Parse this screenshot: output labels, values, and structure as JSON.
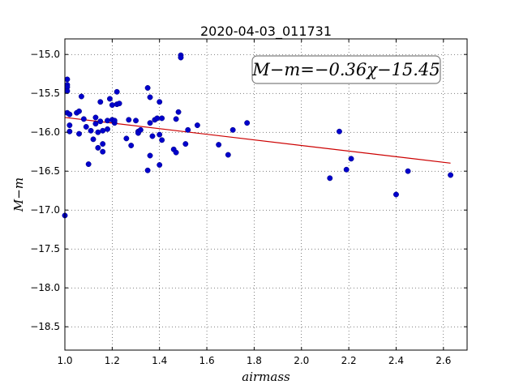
{
  "chart_data": {
    "type": "scatter",
    "title": "2020-04-03_011731",
    "xlabel": "airmass",
    "ylabel": "M−m",
    "xlim": [
      1.0,
      2.7
    ],
    "ylim": [
      -18.8,
      -14.8
    ],
    "y_inverted": true,
    "grid": true,
    "x_ticks": [
      1.0,
      1.2,
      1.4,
      1.6,
      1.8,
      2.0,
      2.2,
      2.4,
      2.6
    ],
    "x_tick_labels": [
      "1.0",
      "1.2",
      "1.4",
      "1.6",
      "1.8",
      "2.0",
      "2.2",
      "2.4",
      "2.6"
    ],
    "y_ticks": [
      -15.0,
      -15.5,
      -16.0,
      -16.5,
      -17.0,
      -17.5,
      -18.0,
      -18.5
    ],
    "y_tick_labels": [
      "−15.0",
      "−15.5",
      "−16.0",
      "−16.5",
      "−17.0",
      "−17.5",
      "−18.0",
      "−18.5"
    ],
    "annotation": "M−m=−0.36χ−15.45",
    "annotation_placement": "top-right",
    "fit": {
      "slope": -0.36,
      "intercept": -15.45,
      "x_range": [
        1.0,
        2.63
      ],
      "color": "#cc0000"
    },
    "point_color": "#0000cc",
    "points": [
      [
        1.0,
        -17.07
      ],
      [
        1.01,
        -15.32
      ],
      [
        1.01,
        -15.39
      ],
      [
        1.01,
        -15.42
      ],
      [
        1.01,
        -15.47
      ],
      [
        1.01,
        -15.75
      ],
      [
        1.02,
        -15.77
      ],
      [
        1.02,
        -15.91
      ],
      [
        1.02,
        -15.99
      ],
      [
        1.05,
        -15.75
      ],
      [
        1.06,
        -15.73
      ],
      [
        1.06,
        -16.02
      ],
      [
        1.07,
        -15.54
      ],
      [
        1.08,
        -15.83
      ],
      [
        1.09,
        -15.93
      ],
      [
        1.1,
        -16.41
      ],
      [
        1.11,
        -15.98
      ],
      [
        1.12,
        -16.09
      ],
      [
        1.13,
        -15.89
      ],
      [
        1.13,
        -15.81
      ],
      [
        1.14,
        -16.0
      ],
      [
        1.14,
        -16.2
      ],
      [
        1.15,
        -15.61
      ],
      [
        1.15,
        -15.86
      ],
      [
        1.16,
        -15.98
      ],
      [
        1.16,
        -16.25
      ],
      [
        1.16,
        -16.15
      ],
      [
        1.18,
        -15.85
      ],
      [
        1.18,
        -15.96
      ],
      [
        1.19,
        -15.57
      ],
      [
        1.2,
        -15.84
      ],
      [
        1.2,
        -15.65
      ],
      [
        1.21,
        -15.88
      ],
      [
        1.21,
        -15.85
      ],
      [
        1.22,
        -15.48
      ],
      [
        1.22,
        -15.64
      ],
      [
        1.23,
        -15.63
      ],
      [
        1.26,
        -16.08
      ],
      [
        1.27,
        -15.84
      ],
      [
        1.28,
        -16.17
      ],
      [
        1.3,
        -15.85
      ],
      [
        1.31,
        -15.99
      ],
      [
        1.31,
        -16.01
      ],
      [
        1.32,
        -15.97
      ],
      [
        1.35,
        -16.49
      ],
      [
        1.35,
        -15.43
      ],
      [
        1.36,
        -15.55
      ],
      [
        1.36,
        -15.88
      ],
      [
        1.36,
        -16.3
      ],
      [
        1.37,
        -16.05
      ],
      [
        1.38,
        -15.84
      ],
      [
        1.39,
        -15.82
      ],
      [
        1.4,
        -16.42
      ],
      [
        1.4,
        -16.03
      ],
      [
        1.4,
        -15.61
      ],
      [
        1.41,
        -16.1
      ],
      [
        1.41,
        -15.82
      ],
      [
        1.46,
        -16.22
      ],
      [
        1.47,
        -16.26
      ],
      [
        1.47,
        -15.83
      ],
      [
        1.48,
        -15.74
      ],
      [
        1.49,
        -15.01
      ],
      [
        1.49,
        -15.04
      ],
      [
        1.51,
        -16.15
      ],
      [
        1.52,
        -15.97
      ],
      [
        1.56,
        -15.91
      ],
      [
        1.65,
        -16.16
      ],
      [
        1.69,
        -16.29
      ],
      [
        1.71,
        -15.97
      ],
      [
        1.77,
        -15.88
      ],
      [
        2.12,
        -16.59
      ],
      [
        2.16,
        -15.99
      ],
      [
        2.19,
        -16.48
      ],
      [
        2.21,
        -16.34
      ],
      [
        2.4,
        -16.8
      ],
      [
        2.45,
        -16.5
      ],
      [
        2.63,
        -16.55
      ]
    ]
  }
}
